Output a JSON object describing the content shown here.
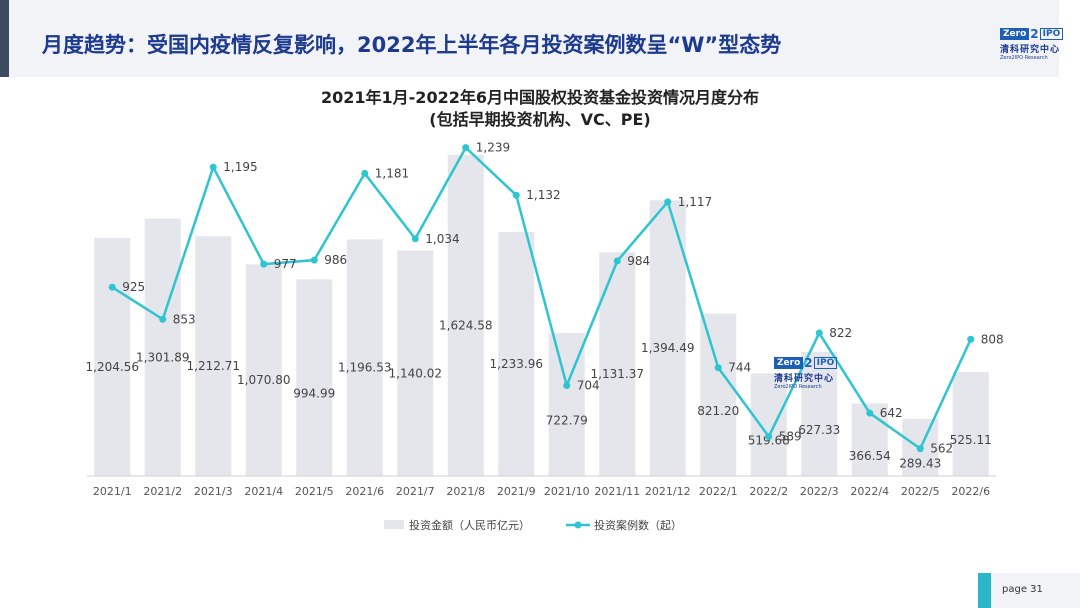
{
  "header": {
    "title": "月度趋势：受国内疫情反复影响，2022年上半年各月投资案例数呈“W”型态势"
  },
  "logo": {
    "mark_zero": "Zero",
    "mark_two": "2",
    "mark_ipo": "IPO",
    "name_cn": "清科研究中心",
    "name_en": "Zero2IPO Research"
  },
  "footer": {
    "page": "page  31"
  },
  "chart_data": {
    "type": "bar+line",
    "title": "2021年1月-2022年6月中国股权投资基金投资情况月度分布",
    "subtitle": "(包括早期投资机构、VC、PE)",
    "categories": [
      "2021/1",
      "2021/2",
      "2021/3",
      "2021/4",
      "2021/5",
      "2021/6",
      "2021/7",
      "2021/8",
      "2021/9",
      "2021/10",
      "2021/11",
      "2021/12",
      "2022/1",
      "2022/2",
      "2022/3",
      "2022/4",
      "2022/5",
      "2022/6"
    ],
    "series": [
      {
        "name": "投资金额（人民币亿元）",
        "kind": "bar",
        "color": "#e4e6ec",
        "values": [
          1204.56,
          1301.89,
          1212.71,
          1070.8,
          994.99,
          1196.53,
          1140.02,
          1624.58,
          1233.96,
          722.79,
          1131.37,
          1394.49,
          821.2,
          519.68,
          627.33,
          366.54,
          289.43,
          525.11
        ],
        "labels": [
          "1,204.56",
          "1,301.89",
          "1,212.71",
          "1,070.80",
          "994.99",
          "1,196.53",
          "1,140.02",
          "1,624.58",
          "1,233.96",
          "722.79",
          "1,131.37",
          "1,394.49",
          "821.20",
          "519.68",
          "627.33",
          "366.54",
          "289.43",
          "525.11"
        ]
      },
      {
        "name": "投资案例数（起）",
        "kind": "line",
        "color": "#2ec4d0",
        "values": [
          925,
          853,
          1195,
          977,
          986,
          1181,
          1034,
          1239,
          1132,
          704,
          984,
          1117,
          744,
          589,
          822,
          642,
          562,
          808
        ],
        "labels": [
          "925",
          "853",
          "1,195",
          "977",
          "986",
          "1,181",
          "1,034",
          "1,239",
          "1,132",
          "704",
          "984",
          "1,117",
          "744",
          "589",
          "822",
          "642",
          "562",
          "808"
        ]
      }
    ],
    "legend_position": "bottom"
  }
}
